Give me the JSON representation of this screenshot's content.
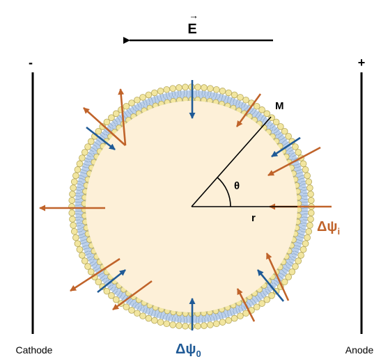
{
  "field": {
    "symbol": "E",
    "vector_mark": "→"
  },
  "electrodes": {
    "cathode": {
      "label": "Cathode",
      "sign": "-"
    },
    "anode": {
      "label": "Anode",
      "sign": "+"
    }
  },
  "geometry_labels": {
    "point": "M",
    "angle": "θ",
    "radius": "r"
  },
  "potentials": {
    "inner": {
      "delta": "Δ",
      "psi": "ψ",
      "subscript": "i",
      "color": "#c0632a"
    },
    "outer": {
      "delta": "Δ",
      "psi": "ψ",
      "subscript": "0",
      "color": "#1f5a96"
    }
  },
  "colors": {
    "cell_fill": "#fdf0d8",
    "head_fill": "#f2e6a0",
    "head_stroke": "#b6a85a",
    "tail": "#bcd0ea",
    "line": "#000000"
  }
}
